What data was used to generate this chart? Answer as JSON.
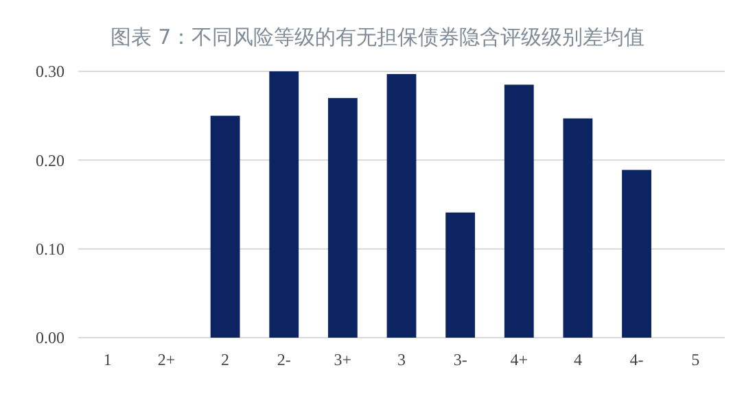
{
  "chart_data": {
    "type": "bar",
    "title": "图表 7：不同风险等级的有无担保债券隐含评级级别差均值",
    "categories": [
      "1",
      "2+",
      "2",
      "2-",
      "3+",
      "3",
      "3-",
      "4+",
      "4",
      "4-",
      "5"
    ],
    "values": [
      null,
      null,
      0.25,
      0.3,
      0.27,
      0.297,
      0.141,
      0.285,
      0.247,
      0.189,
      null
    ],
    "color": "#0c2461",
    "ylim": [
      0,
      0.3
    ],
    "yticks": [
      {
        "value": 0,
        "label": "0.00"
      },
      {
        "value": 0.1,
        "label": "0.10"
      },
      {
        "value": 0.2,
        "label": "0.20"
      },
      {
        "value": 0.3,
        "label": "0.30"
      }
    ],
    "grid": "y"
  }
}
